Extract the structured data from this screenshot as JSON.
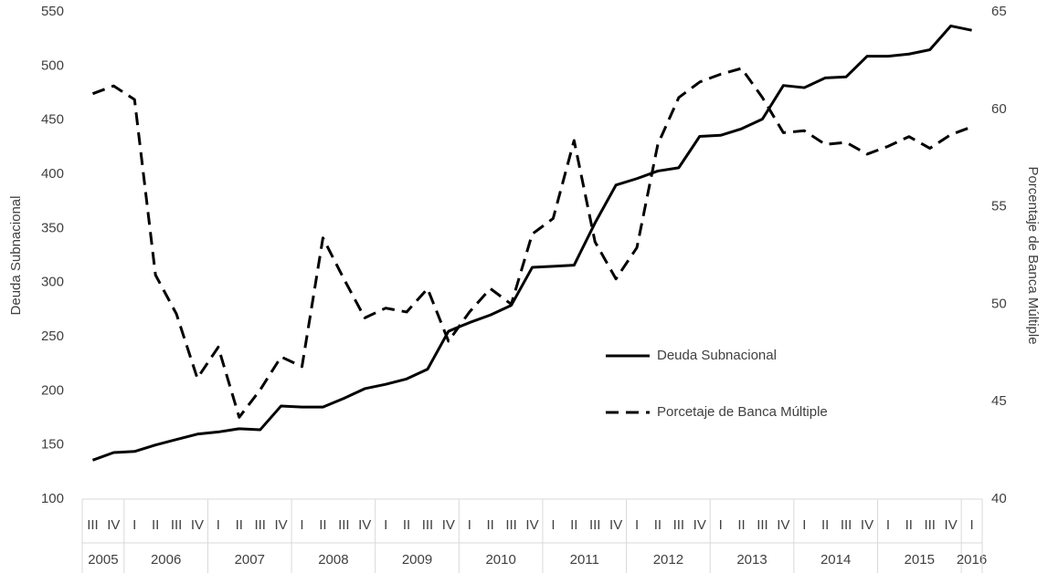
{
  "chart_data": {
    "type": "line",
    "categories": [
      "III",
      "IV",
      "I",
      "II",
      "III",
      "IV",
      "I",
      "II",
      "III",
      "IV",
      "I",
      "II",
      "III",
      "IV",
      "I",
      "II",
      "III",
      "IV",
      "I",
      "II",
      "III",
      "IV",
      "I",
      "II",
      "III",
      "IV",
      "I",
      "II",
      "III",
      "IV",
      "I",
      "II",
      "III",
      "IV",
      "I",
      "II",
      "III",
      "IV",
      "I",
      "II",
      "III",
      "IV",
      "I"
    ],
    "year_groups": [
      {
        "label": "2005",
        "span": 2
      },
      {
        "label": "2006",
        "span": 4
      },
      {
        "label": "2007",
        "span": 4
      },
      {
        "label": "2008",
        "span": 4
      },
      {
        "label": "2009",
        "span": 4
      },
      {
        "label": "2010",
        "span": 4
      },
      {
        "label": "2011",
        "span": 4
      },
      {
        "label": "2012",
        "span": 4
      },
      {
        "label": "2013",
        "span": 4
      },
      {
        "label": "2014",
        "span": 4
      },
      {
        "label": "2015",
        "span": 4
      },
      {
        "label": "2016",
        "span": 1
      }
    ],
    "y_label": "Deuda Subnacional",
    "y2_label": "Porcentaje de Banca Múltiple",
    "ylim": [
      100,
      550
    ],
    "yticks": [
      100,
      150,
      200,
      250,
      300,
      350,
      400,
      450,
      500,
      550
    ],
    "y2lim": [
      40,
      65
    ],
    "y2ticks": [
      40,
      45,
      50,
      55,
      60,
      65
    ],
    "legend": "right",
    "series": [
      {
        "name": "Deuda Subnacional",
        "color": "#000000",
        "dash": false,
        "axis": "y",
        "values": [
          136,
          143,
          144,
          150,
          155,
          160,
          162,
          165,
          164,
          186,
          185,
          185,
          193,
          202,
          206,
          211,
          220,
          255,
          263,
          270,
          279,
          314,
          315,
          316,
          355,
          390,
          396,
          403,
          406,
          435,
          436,
          442,
          451,
          482,
          480,
          489,
          490,
          509,
          509,
          511,
          515,
          537,
          533
        ]
      },
      {
        "name": "Porcetaje de Banca Múltiple",
        "color": "#000000",
        "dash": true,
        "axis": "y2",
        "values": [
          60.8,
          61.2,
          60.5,
          51.5,
          49.5,
          46.2,
          47.8,
          44.2,
          45.6,
          47.3,
          46.8,
          53.4,
          51.3,
          49.3,
          49.8,
          49.6,
          50.8,
          48.1,
          49.6,
          50.8,
          50.0,
          53.6,
          54.4,
          58.4,
          53.2,
          51.3,
          52.9,
          58.2,
          60.6,
          61.4,
          61.8,
          62.1,
          60.6,
          58.8,
          58.9,
          58.2,
          58.3,
          57.7,
          58.1,
          58.6,
          58.0,
          58.7,
          59.1
        ]
      }
    ]
  }
}
